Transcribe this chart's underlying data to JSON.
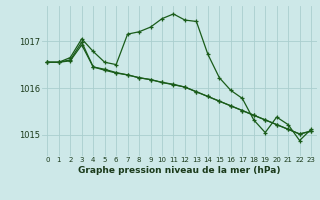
{
  "title": "Graphe pression niveau de la mer (hPa)",
  "bg_color": "#cde8e8",
  "grid_color": "#aacece",
  "line_color": "#1a5c1a",
  "xlim": [
    -0.5,
    23.5
  ],
  "ylim": [
    1014.55,
    1017.75
  ],
  "yticks": [
    1015,
    1016,
    1017
  ],
  "xticks": [
    0,
    1,
    2,
    3,
    4,
    5,
    6,
    7,
    8,
    9,
    10,
    11,
    12,
    13,
    14,
    15,
    16,
    17,
    18,
    19,
    20,
    21,
    22,
    23
  ],
  "line1": [
    1016.55,
    1016.55,
    1016.65,
    1017.05,
    1016.78,
    1016.55,
    1016.5,
    1017.15,
    1017.2,
    1017.3,
    1017.48,
    1017.58,
    1017.45,
    1017.42,
    1016.72,
    1016.22,
    1015.95,
    1015.78,
    1015.32,
    1015.05,
    1015.38,
    1015.22,
    1014.88,
    1015.12
  ],
  "line2": [
    1016.55,
    1016.55,
    1016.58,
    1016.92,
    1016.45,
    1016.38,
    1016.32,
    1016.28,
    1016.22,
    1016.18,
    1016.12,
    1016.08,
    1016.02,
    1015.92,
    1015.82,
    1015.72,
    1015.62,
    1015.52,
    1015.42,
    1015.32,
    1015.22,
    1015.12,
    1015.02,
    1015.08
  ],
  "line3": [
    1016.55,
    1016.55,
    1016.6,
    1016.98,
    1016.45,
    1016.4,
    1016.33,
    1016.28,
    1016.22,
    1016.18,
    1016.12,
    1016.07,
    1016.02,
    1015.92,
    1015.82,
    1015.72,
    1015.62,
    1015.52,
    1015.42,
    1015.32,
    1015.22,
    1015.12,
    1015.02,
    1015.08
  ]
}
